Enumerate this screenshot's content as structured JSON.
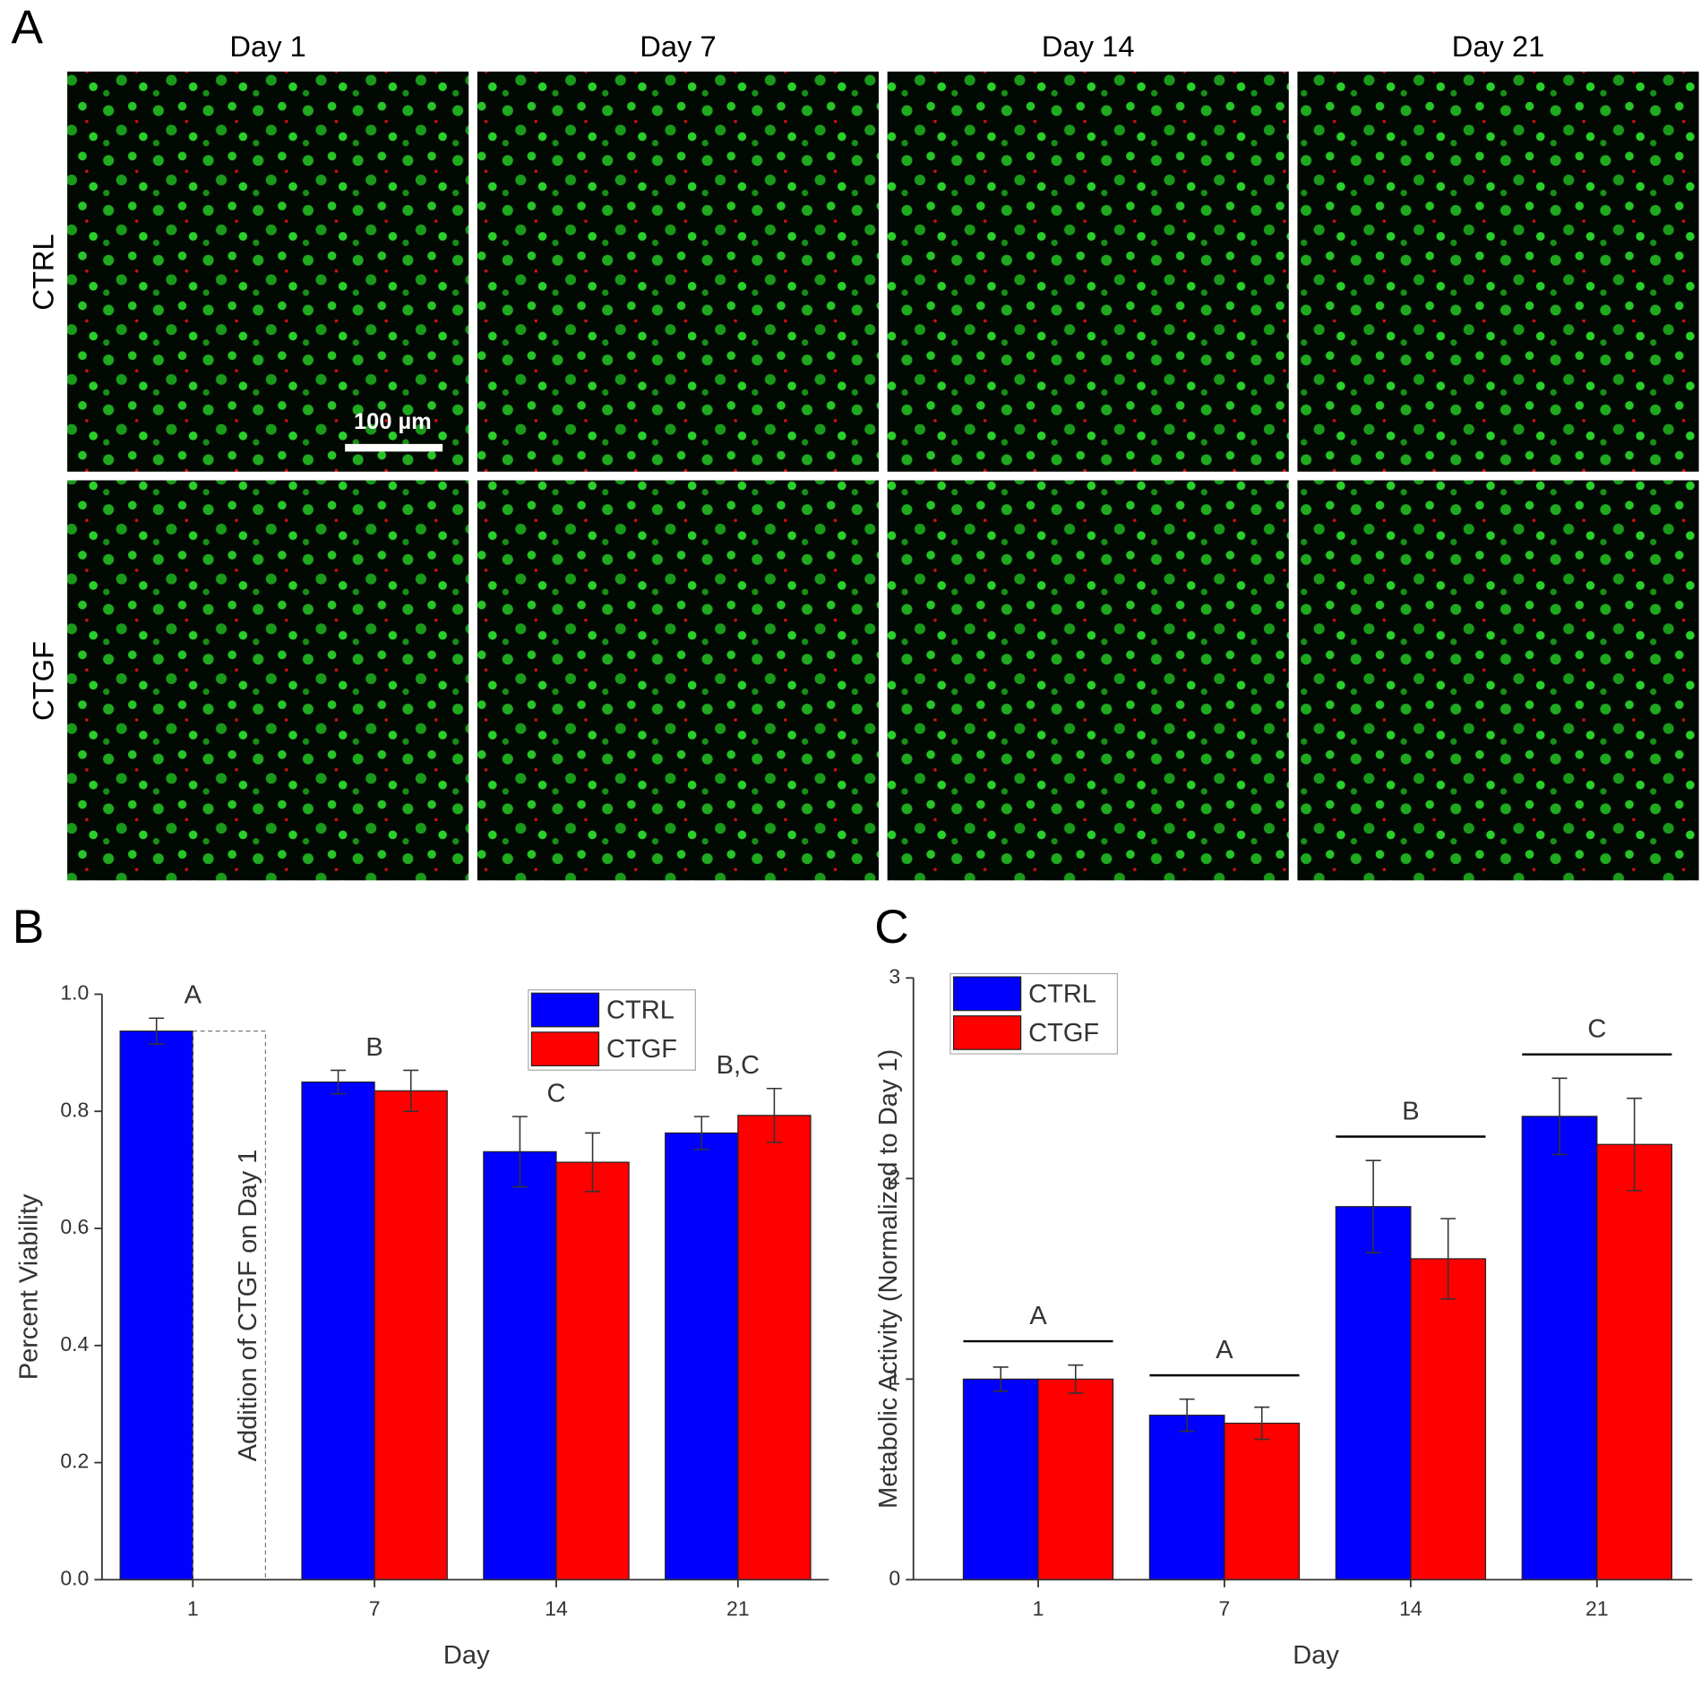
{
  "panel_a": {
    "label": "A",
    "columns": [
      "Day 1",
      "Day 7",
      "Day 14",
      "Day 21"
    ],
    "rows": [
      "CTRL",
      "CTGF"
    ],
    "scale_bar": "100 µm"
  },
  "chart_data": [
    {
      "type": "bar",
      "panel_label": "B",
      "xlabel": "Day",
      "ylabel": "Percent Viability",
      "categories": [
        "1",
        "7",
        "14",
        "21"
      ],
      "series": [
        {
          "name": "CTRL",
          "color": "#0000ff",
          "values": [
            0.937,
            0.85,
            0.731,
            0.763
          ],
          "errors": [
            0.022,
            0.02,
            0.06,
            0.028
          ]
        },
        {
          "name": "CTGF",
          "color": "#ff0000",
          "values": [
            null,
            0.835,
            0.713,
            0.793
          ],
          "errors": [
            null,
            0.035,
            0.05,
            0.046
          ]
        }
      ],
      "group_labels": [
        "A",
        "B",
        "C",
        "B,C"
      ],
      "note": "Addition of CTGF on Day 1",
      "ylim": [
        0,
        1.0
      ],
      "yticks": [
        {
          "value": 0,
          "label": "0.0"
        },
        {
          "value": 0.2,
          "label": "0.2"
        },
        {
          "value": 0.4,
          "label": "0.4"
        },
        {
          "value": 0.6,
          "label": "0.6"
        },
        {
          "value": 0.8,
          "label": "0.8"
        },
        {
          "value": 1.0,
          "label": "1.0"
        }
      ],
      "legend": "upper right"
    },
    {
      "type": "bar",
      "panel_label": "C",
      "xlabel": "Day",
      "ylabel": "Metabolic Activity (Normalized to Day 1)",
      "categories": [
        "1",
        "7",
        "14",
        "21"
      ],
      "series": [
        {
          "name": "CTRL",
          "color": "#0000ff",
          "values": [
            1.0,
            0.82,
            1.86,
            2.31
          ],
          "errors": [
            0.06,
            0.08,
            0.23,
            0.19
          ]
        },
        {
          "name": "CTGF",
          "color": "#ff0000",
          "values": [
            1.0,
            0.78,
            1.6,
            2.17
          ],
          "errors": [
            0.07,
            0.08,
            0.2,
            0.23
          ]
        }
      ],
      "group_labels": [
        "A",
        "A",
        "B",
        "C"
      ],
      "group_lines": true,
      "ylim": [
        0,
        3
      ],
      "yticks": [
        0,
        1,
        2,
        3
      ],
      "legend": "upper left"
    }
  ]
}
